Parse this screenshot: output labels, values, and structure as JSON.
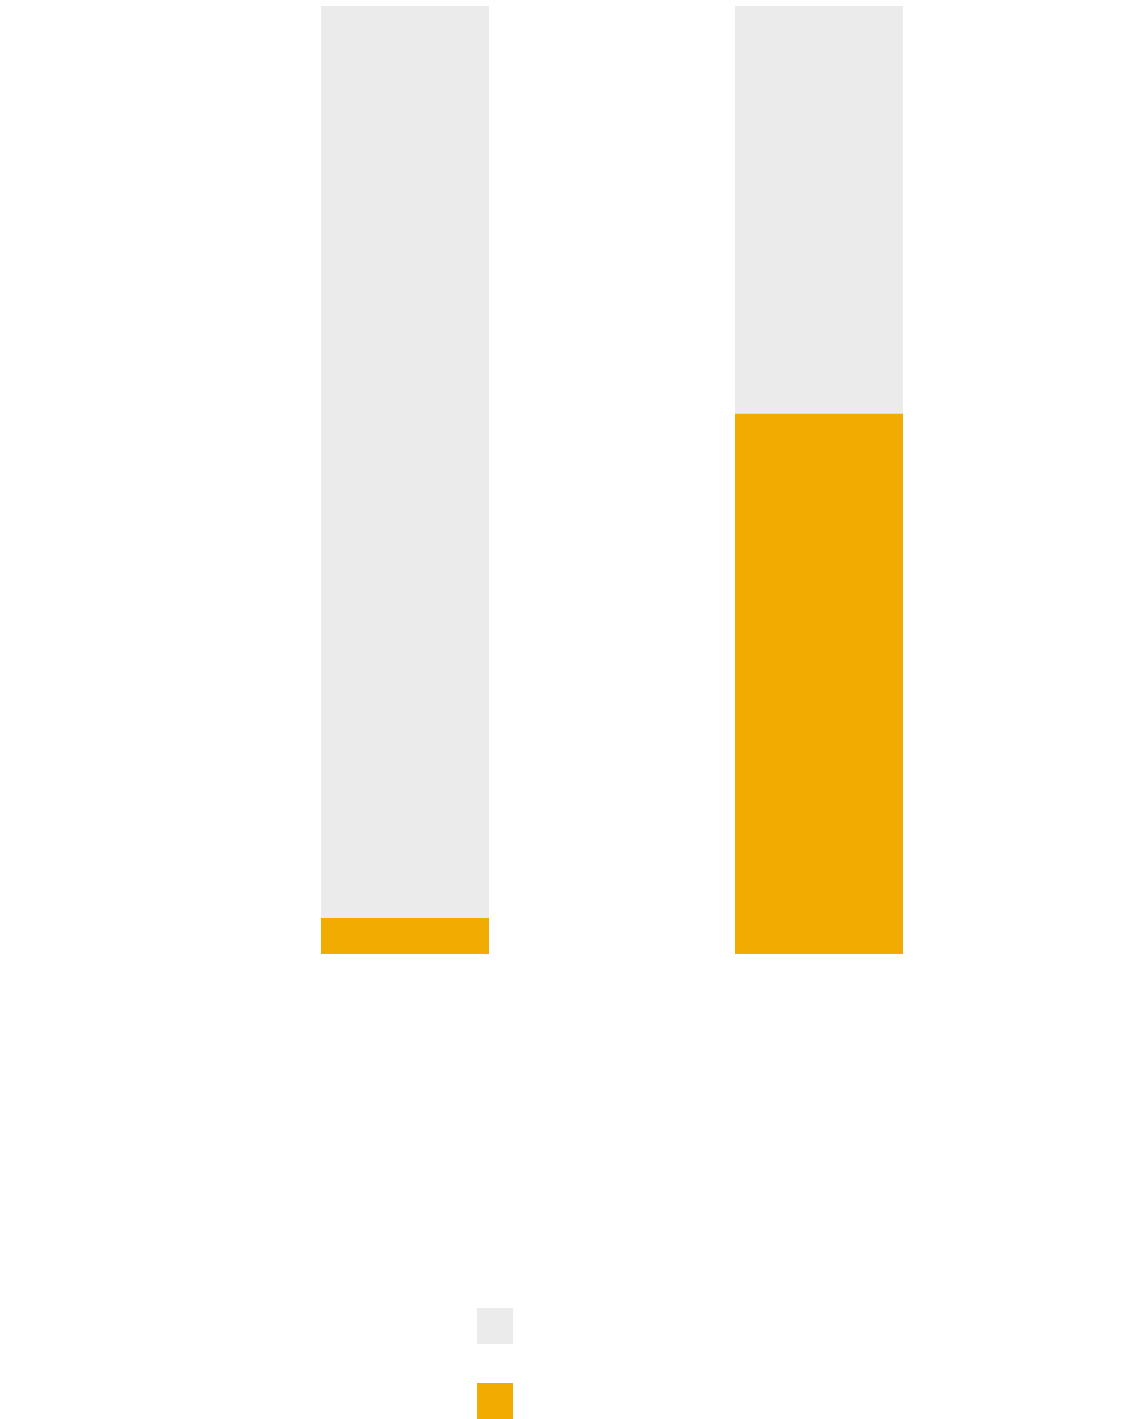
{
  "chart_data": {
    "type": "bar",
    "stacked": true,
    "normalized": true,
    "categories": [
      "",
      ""
    ],
    "series": [
      {
        "values": [
          0.038,
          0.57
        ],
        "color": "#F2AB00"
      },
      {
        "values": [
          0.962,
          0.43
        ],
        "color": "#EBEBEB"
      }
    ],
    "ylim": [
      0,
      1
    ],
    "grid": false,
    "legend": {
      "position": "bottom",
      "entries": [
        {
          "color": "#EBEBEB"
        },
        {
          "color": "#F2AB00"
        }
      ]
    }
  }
}
